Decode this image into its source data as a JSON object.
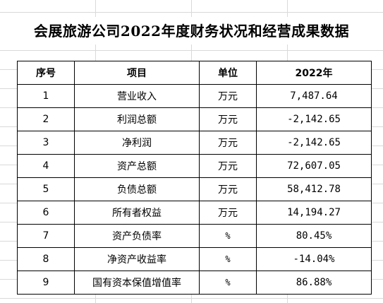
{
  "title": "会展旅游公司2022年度财务状况和经营成果数据",
  "table": {
    "headers": [
      "序号",
      "项目",
      "单位",
      "2022年"
    ],
    "rows": [
      {
        "no": "1",
        "item": "营业收入",
        "unit": "万元",
        "value": "7,487.64"
      },
      {
        "no": "2",
        "item": "利润总额",
        "unit": "万元",
        "value": "-2,142.65"
      },
      {
        "no": "3",
        "item": "净利润",
        "unit": "万元",
        "value": "-2,142.65"
      },
      {
        "no": "4",
        "item": "资产总额",
        "unit": "万元",
        "value": "72,607.05"
      },
      {
        "no": "5",
        "item": "负债总额",
        "unit": "万元",
        "value": "58,412.78"
      },
      {
        "no": "6",
        "item": "所有者权益",
        "unit": "万元",
        "value": "14,194.27"
      },
      {
        "no": "7",
        "item": "资产负债率",
        "unit": "%",
        "value": "80.45%"
      },
      {
        "no": "8",
        "item": "净资产收益率",
        "unit": "%",
        "value": "-14.04%"
      },
      {
        "no": "9",
        "item": "国有资本保值增值率",
        "unit": "%",
        "value": "86.88%"
      }
    ]
  }
}
